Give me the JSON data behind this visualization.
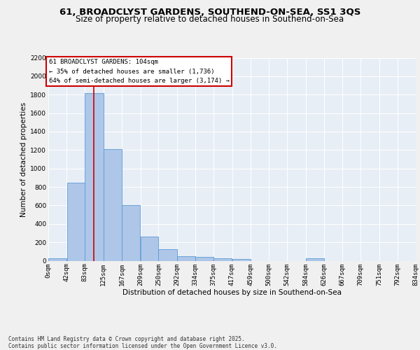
{
  "title_line1": "61, BROADCLYST GARDENS, SOUTHEND-ON-SEA, SS1 3QS",
  "title_line2": "Size of property relative to detached houses in Southend-on-Sea",
  "xlabel": "Distribution of detached houses by size in Southend-on-Sea",
  "ylabel": "Number of detached properties",
  "annotation_line1": "61 BROADCLYST GARDENS: 104sqm",
  "annotation_line2": "← 35% of detached houses are smaller (1,736)",
  "annotation_line3": "64% of semi-detached houses are larger (3,174) →",
  "footer": "Contains HM Land Registry data © Crown copyright and database right 2025.\nContains public sector information licensed under the Open Government Licence v3.0.",
  "bar_edges": [
    0,
    42,
    83,
    125,
    167,
    209,
    250,
    292,
    334,
    375,
    417,
    459,
    500,
    542,
    584,
    626,
    667,
    709,
    751,
    792,
    834
  ],
  "bar_heights": [
    25,
    845,
    1820,
    1210,
    600,
    260,
    125,
    50,
    40,
    30,
    20,
    0,
    0,
    0,
    25,
    0,
    0,
    0,
    0,
    0
  ],
  "bar_color": "#aec6e8",
  "bar_edge_color": "#5b9bd5",
  "property_size": 104,
  "marker_line_color": "#cc0000",
  "annotation_box_edge_color": "#cc0000",
  "annotation_box_fill": "#ffffff",
  "ylim": [
    0,
    2200
  ],
  "yticks": [
    0,
    200,
    400,
    600,
    800,
    1000,
    1200,
    1400,
    1600,
    1800,
    2000,
    2200
  ],
  "background_color": "#e8eef6",
  "grid_color": "#ffffff",
  "fig_bg_color": "#f0f0f0",
  "title_fontsize": 9.5,
  "subtitle_fontsize": 8.5,
  "axis_label_fontsize": 7.5,
  "tick_fontsize": 6.5,
  "annotation_fontsize": 6.5,
  "footer_fontsize": 5.5
}
